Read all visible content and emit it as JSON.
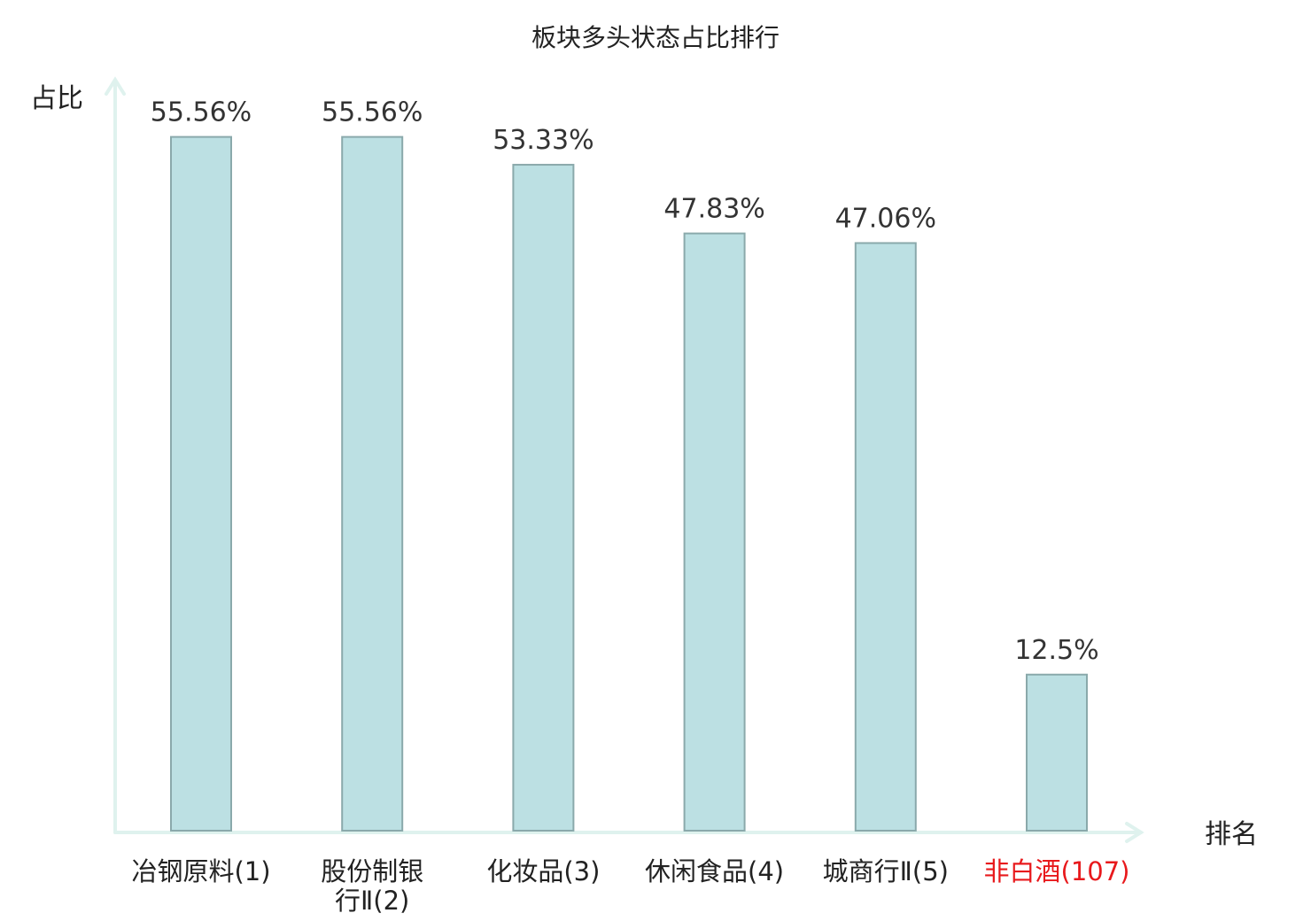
{
  "chart_data": {
    "type": "bar",
    "title": "板块多头状态占比排行",
    "ylabel": "占比",
    "xlabel": "排名",
    "ylim": [
      0,
      60
    ],
    "categories": [
      [
        "冶钢原料(1)"
      ],
      [
        "股份制银",
        "行Ⅱ(2)"
      ],
      [
        "化妆品(3)"
      ],
      [
        "休闲食品(4)"
      ],
      [
        "城商行Ⅱ(5)"
      ],
      [
        "非白酒(107)"
      ]
    ],
    "values": [
      55.56,
      55.56,
      53.33,
      47.83,
      47.06,
      12.5
    ],
    "value_labels": [
      "55.56%",
      "55.56%",
      "53.33%",
      "47.83%",
      "47.06%",
      "12.5%"
    ],
    "highlight_index": 5,
    "colors": {
      "bar_fill": "#bce0e3",
      "bar_stroke": "#8aa9ab",
      "axis": "#dff2ee",
      "text": "#222222",
      "value_text": "#333333",
      "highlight_text": "#e8191c"
    }
  }
}
